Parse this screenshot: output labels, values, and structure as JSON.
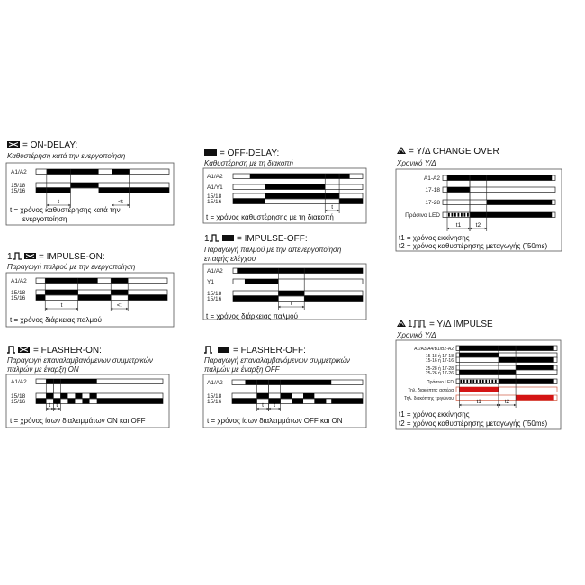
{
  "colors": {
    "signal_on": "#000000",
    "signal_off": "#ffffff",
    "outline": "#222222",
    "red_signal": "#d41414",
    "red_outline": "#d05a40"
  },
  "time_scale": "relative 0-100",
  "panels": [
    {
      "icon": "on-delay-icon",
      "title": "= ON-DELAY:",
      "subtitle": [
        "Καθυστέρηση κατά την ενεργοποίηση"
      ],
      "legend": [
        "t = χρόνος καθυστέρησης κατά την",
        "ενεργοποίηση"
      ],
      "rows": [
        {
          "label": "A1/A2",
          "on": [
            [
              8,
              47
            ],
            [
              57,
              70
            ]
          ]
        },
        {
          "label": "15/18",
          "on": [
            [
              26,
              47
            ]
          ]
        },
        {
          "label": "15/16",
          "on": [
            [
              0,
              26
            ],
            [
              47,
              100
            ]
          ]
        }
      ],
      "dims": [
        {
          "label": "t",
          "from": 8,
          "to": 26
        },
        {
          "label": "<t",
          "from": 57,
          "to": 70
        }
      ]
    },
    {
      "icon": "impulse-on-icon",
      "title": "= IMPULSE-ON:",
      "subtitle": [
        "Παραγωγή παλμού με την ενεργοποίηση"
      ],
      "legend": [
        "t = χρόνος διάρκειας παλμού"
      ],
      "rows": [
        {
          "label": "A1/A2",
          "on": [
            [
              7,
              47
            ],
            [
              57,
              70
            ]
          ]
        },
        {
          "label": "15/18",
          "on": [
            [
              7,
              32
            ],
            [
              57,
              70
            ]
          ]
        },
        {
          "label": "15/16",
          "on": [
            [
              0,
              7
            ],
            [
              32,
              57
            ],
            [
              70,
              100
            ]
          ]
        }
      ],
      "dims": [
        {
          "label": "t",
          "from": 7,
          "to": 32
        },
        {
          "label": "<t",
          "from": 57,
          "to": 70
        }
      ]
    },
    {
      "icon": "flasher-on-icon",
      "title": "= FLASHER-ON:",
      "subtitle": [
        "Παραγωγή επαναλαμβανόμενων συμμετρικών",
        "παλμών με έναρξη ON"
      ],
      "legend": [
        "t = χρόνος ίσων διαλειμμάτων ON και OFF"
      ],
      "rows": [
        {
          "label": "A1/A2",
          "on": [
            [
              8,
              48
            ]
          ]
        },
        {
          "label": "15/18",
          "on": [
            [
              8,
              13.7
            ],
            [
              19.4,
              25.1
            ],
            [
              30.8,
              36.5
            ],
            [
              42.2,
              48
            ]
          ]
        },
        {
          "label": "15/16",
          "on": [
            [
              0,
              8
            ],
            [
              13.7,
              19.4
            ],
            [
              25.1,
              30.8
            ],
            [
              36.5,
              42.2
            ],
            [
              48,
              100
            ]
          ]
        }
      ],
      "dims": [
        {
          "label": "t",
          "from": 8,
          "to": 13.7
        },
        {
          "label": "t",
          "from": 13.7,
          "to": 19.4
        }
      ]
    },
    {
      "icon": "off-delay-icon",
      "title": "= OFF-DELAY:",
      "subtitle": [
        "Καθυστέρηση με τη διακοπή"
      ],
      "legend": [
        "t = χρόνος καθυστέρησης με τη διακοπή"
      ],
      "rows": [
        {
          "label": "A1/A2",
          "on": [
            [
              13,
              90
            ]
          ]
        },
        {
          "label": "A1/Y1",
          "on": [
            [
              25,
              71
            ]
          ]
        },
        {
          "label": "15/18",
          "on": [
            [
              25,
              82
            ]
          ]
        },
        {
          "label": "15/16",
          "on": [
            [
              0,
              25
            ],
            [
              82,
              100
            ]
          ]
        }
      ],
      "dims": [
        {
          "label": "t",
          "from": 71,
          "to": 82
        }
      ]
    },
    {
      "icon": "impulse-off-icon",
      "title": "= IMPULSE-OFF:",
      "subtitle": [
        "Παραγωγή παλμού με την απενεργοποίηση",
        "επαφής ελέγχου"
      ],
      "legend": [
        "t = χρόνος διάρκειας παλμού"
      ],
      "rows": [
        {
          "label": "A1/A2",
          "on": [
            [
              3,
              100
            ]
          ]
        },
        {
          "label": "Y1",
          "on": [
            [
              9,
              35
            ]
          ]
        },
        {
          "label": "15/18",
          "on": [
            [
              35,
              55
            ]
          ]
        },
        {
          "label": "15/16",
          "on": [
            [
              0,
              35
            ],
            [
              55,
              100
            ]
          ]
        }
      ],
      "dims": [
        {
          "label": "t",
          "from": 35,
          "to": 55
        }
      ]
    },
    {
      "icon": "flasher-off-icon",
      "title": "= FLASHER-OFF:",
      "subtitle": [
        "Παραγωγή επαναλαμβανόμενων συμμετρικών",
        "παλμών με έναρξη OFF"
      ],
      "legend": [
        "t = χρόνος ίσων διαλειμμάτων OFF και ON"
      ],
      "rows": [
        {
          "label": "A1/A2",
          "on": [
            [
              10,
              76
            ]
          ]
        },
        {
          "label": "15/18",
          "on": [
            [
              19,
              28
            ],
            [
              37,
              46
            ],
            [
              54.5,
              63
            ]
          ]
        },
        {
          "label": "15/16",
          "on": [
            [
              0,
              19
            ],
            [
              28,
              37
            ],
            [
              46,
              54.5
            ],
            [
              63,
              72
            ],
            [
              76,
              100
            ]
          ]
        }
      ],
      "dims": [
        {
          "label": "t",
          "from": 19,
          "to": 28
        },
        {
          "label": "t",
          "from": 28,
          "to": 37
        }
      ]
    },
    {
      "icon": "star-delta-icon",
      "title": "= Y/Δ CHANGE OVER",
      "subtitle": [
        "Χρονικό Y/Δ"
      ],
      "legend": [
        "t1 = χρόνος εκκίνησης",
        "t2 = χρόνος καθυστέρησης μεταγωγής (˜50ms)"
      ],
      "rows": [
        {
          "label": "A1-A2",
          "on": [
            [
              4,
              97
            ]
          ]
        },
        {
          "label": "17-18",
          "on": [
            [
              4,
              24
            ]
          ]
        },
        {
          "label": "17-28",
          "on": [
            [
              39,
              97
            ]
          ]
        },
        {
          "label": "Πράσινο LED",
          "on": [
            [
              24,
              97
            ]
          ],
          "blink": [
            4,
            24
          ]
        }
      ],
      "dims": [
        {
          "label": "t1",
          "from": 4,
          "to": 24
        },
        {
          "label": "t2",
          "from": 24,
          "to": 39
        }
      ]
    },
    {
      "icon": "star-delta-impulse-icon",
      "title": "= Y/Δ IMPULSE",
      "subtitle": [
        "Χρονικό Y/Δ"
      ],
      "legend": [
        "t1 = χρόνος εκκίνησης",
        "t2 = χρόνος καθυστέρησης μεταγωγής (˜50ms)"
      ],
      "rows": [
        {
          "label": "A1/A3/A4/B1/B2-A2",
          "on": [
            [
              3,
              97
            ]
          ]
        },
        {
          "label": "15-18 ή 17-18",
          "on": [
            [
              3,
              42
            ]
          ]
        },
        {
          "label": "15-16 ή 17-16",
          "on": [
            [
              42,
              97
            ]
          ]
        },
        {
          "label": "25-28 ή 17-28",
          "on": [
            [
              59,
              97
            ]
          ]
        },
        {
          "label": "25-26 ή 17-26",
          "on": [
            [
              3,
              59
            ]
          ]
        },
        {
          "label": "Πράσινο LED",
          "on": [
            [
              42,
              97
            ]
          ],
          "blink": [
            3,
            42
          ]
        },
        {
          "label": "Τηλ. διακόπτης αστέρα",
          "on": [
            [
              3,
              42
            ]
          ],
          "red": true
        },
        {
          "label": "Τηλ. διακόπτης τριγώνου",
          "on": [
            [
              59,
              97
            ]
          ],
          "red": true
        }
      ],
      "dims": [
        {
          "label": "t1",
          "from": 3,
          "to": 42
        },
        {
          "label": "t2",
          "from": 42,
          "to": 59
        }
      ]
    }
  ]
}
